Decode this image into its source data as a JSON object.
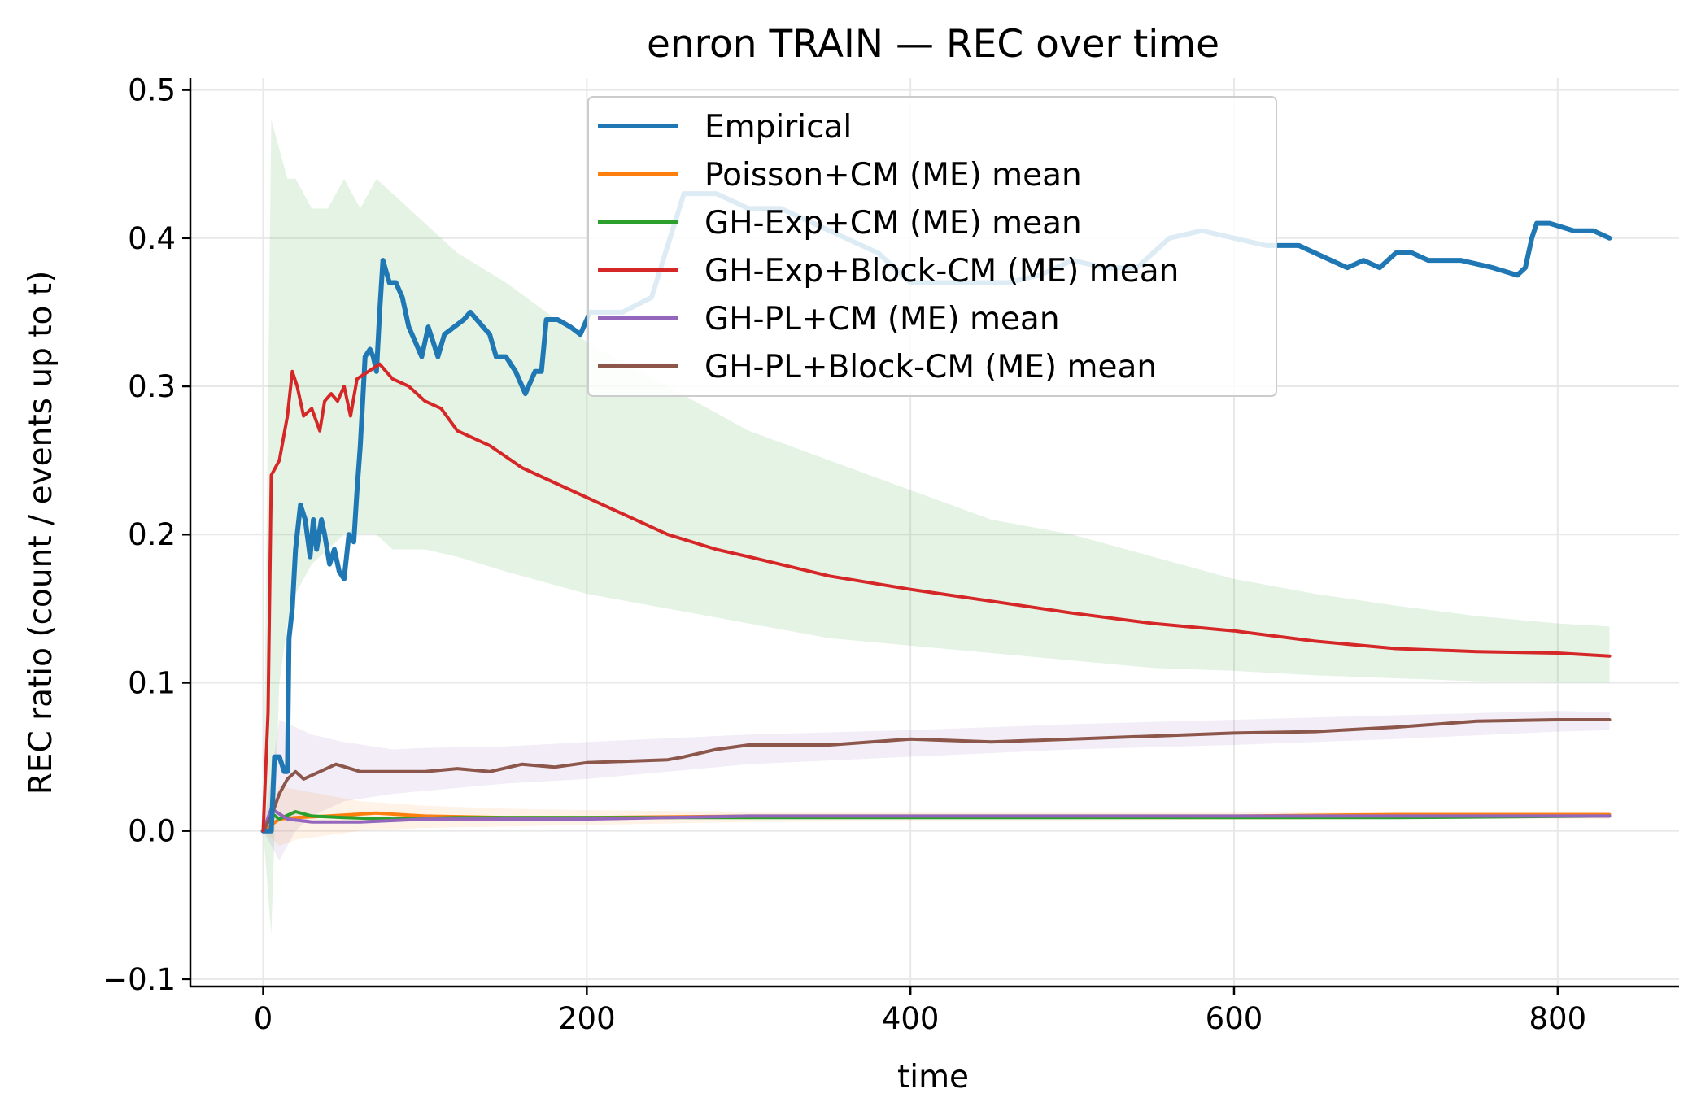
{
  "chart_data": {
    "type": "line",
    "title": "enron TRAIN — REC over time",
    "xlabel": "time",
    "ylabel": "REC ratio (count / events up to t)",
    "xlim": [
      -45,
      875
    ],
    "ylim": [
      -0.105,
      0.508
    ],
    "xticks": [
      0,
      200,
      400,
      600,
      800
    ],
    "yticks": [
      -0.1,
      0.0,
      0.1,
      0.2,
      0.3,
      0.4,
      0.5
    ],
    "ytick_labels": [
      "−0.1",
      "0.0",
      "0.1",
      "0.2",
      "0.3",
      "0.4",
      "0.5"
    ],
    "grid": true,
    "legend_position": "top-center",
    "series": [
      {
        "name": "Empirical",
        "color": "#1f77b4",
        "points": [
          [
            0,
            0
          ],
          [
            5,
            0
          ],
          [
            7,
            0.05
          ],
          [
            10,
            0.05
          ],
          [
            13,
            0.04
          ],
          [
            15,
            0.04
          ],
          [
            16,
            0.13
          ],
          [
            18,
            0.15
          ],
          [
            20,
            0.19
          ],
          [
            23,
            0.22
          ],
          [
            26,
            0.21
          ],
          [
            29,
            0.185
          ],
          [
            31,
            0.21
          ],
          [
            33,
            0.19
          ],
          [
            36,
            0.21
          ],
          [
            38,
            0.2
          ],
          [
            41,
            0.18
          ],
          [
            44,
            0.19
          ],
          [
            47,
            0.175
          ],
          [
            50,
            0.17
          ],
          [
            53,
            0.2
          ],
          [
            56,
            0.195
          ],
          [
            58,
            0.23
          ],
          [
            60,
            0.26
          ],
          [
            63,
            0.32
          ],
          [
            66,
            0.325
          ],
          [
            68,
            0.32
          ],
          [
            70,
            0.31
          ],
          [
            72,
            0.35
          ],
          [
            74,
            0.385
          ],
          [
            78,
            0.37
          ],
          [
            82,
            0.37
          ],
          [
            86,
            0.36
          ],
          [
            90,
            0.34
          ],
          [
            94,
            0.33
          ],
          [
            98,
            0.32
          ],
          [
            102,
            0.34
          ],
          [
            105,
            0.33
          ],
          [
            108,
            0.32
          ],
          [
            112,
            0.335
          ],
          [
            118,
            0.34
          ],
          [
            124,
            0.345
          ],
          [
            128,
            0.35
          ],
          [
            132,
            0.345
          ],
          [
            136,
            0.34
          ],
          [
            140,
            0.335
          ],
          [
            144,
            0.32
          ],
          [
            150,
            0.32
          ],
          [
            156,
            0.31
          ],
          [
            162,
            0.295
          ],
          [
            168,
            0.31
          ],
          [
            172,
            0.31
          ],
          [
            175,
            0.345
          ],
          [
            182,
            0.345
          ],
          [
            190,
            0.34
          ],
          [
            196,
            0.335
          ],
          [
            202,
            0.35
          ],
          [
            210,
            0.35
          ],
          [
            222,
            0.35
          ],
          [
            240,
            0.36
          ],
          [
            260,
            0.43
          ],
          [
            280,
            0.43
          ],
          [
            300,
            0.42
          ],
          [
            320,
            0.42
          ],
          [
            340,
            0.41
          ],
          [
            360,
            0.4
          ],
          [
            380,
            0.39
          ],
          [
            400,
            0.37
          ],
          [
            430,
            0.37
          ],
          [
            460,
            0.37
          ],
          [
            480,
            0.375
          ],
          [
            500,
            0.385
          ],
          [
            520,
            0.38
          ],
          [
            540,
            0.38
          ],
          [
            560,
            0.4
          ],
          [
            580,
            0.405
          ],
          [
            600,
            0.4
          ],
          [
            620,
            0.395
          ],
          [
            640,
            0.395
          ],
          [
            650,
            0.39
          ],
          [
            660,
            0.385
          ],
          [
            670,
            0.38
          ],
          [
            680,
            0.385
          ],
          [
            690,
            0.38
          ],
          [
            700,
            0.39
          ],
          [
            710,
            0.39
          ],
          [
            720,
            0.385
          ],
          [
            740,
            0.385
          ],
          [
            760,
            0.38
          ],
          [
            775,
            0.375
          ],
          [
            780,
            0.38
          ],
          [
            784,
            0.4
          ],
          [
            787,
            0.41
          ],
          [
            795,
            0.41
          ],
          [
            810,
            0.405
          ],
          [
            822,
            0.405
          ],
          [
            832,
            0.4
          ]
        ]
      },
      {
        "name": "Poisson+CM (ME) mean",
        "color": "#ff7f0e",
        "points": [
          [
            0,
            0
          ],
          [
            10,
            0.008
          ],
          [
            20,
            0.009
          ],
          [
            40,
            0.01
          ],
          [
            70,
            0.012
          ],
          [
            100,
            0.01
          ],
          [
            150,
            0.009
          ],
          [
            200,
            0.009
          ],
          [
            300,
            0.01
          ],
          [
            400,
            0.01
          ],
          [
            500,
            0.01
          ],
          [
            600,
            0.01
          ],
          [
            700,
            0.011
          ],
          [
            832,
            0.011
          ]
        ]
      },
      {
        "name": "GH-Exp+CM (ME) mean",
        "color": "#2ca02c",
        "points": [
          [
            0,
            0
          ],
          [
            5,
            0.012
          ],
          [
            10,
            0.008
          ],
          [
            20,
            0.013
          ],
          [
            30,
            0.01
          ],
          [
            50,
            0.009
          ],
          [
            80,
            0.008
          ],
          [
            120,
            0.009
          ],
          [
            200,
            0.009
          ],
          [
            300,
            0.009
          ],
          [
            400,
            0.009
          ],
          [
            500,
            0.009
          ],
          [
            600,
            0.009
          ],
          [
            700,
            0.009
          ],
          [
            832,
            0.01
          ]
        ]
      },
      {
        "name": "GH-Exp+Block-CM (ME) mean",
        "color": "#d62728",
        "points": [
          [
            0,
            0
          ],
          [
            3,
            0.08
          ],
          [
            5,
            0.24
          ],
          [
            10,
            0.25
          ],
          [
            15,
            0.28
          ],
          [
            18,
            0.31
          ],
          [
            21,
            0.3
          ],
          [
            25,
            0.28
          ],
          [
            30,
            0.285
          ],
          [
            35,
            0.27
          ],
          [
            38,
            0.29
          ],
          [
            42,
            0.295
          ],
          [
            46,
            0.29
          ],
          [
            50,
            0.3
          ],
          [
            54,
            0.28
          ],
          [
            58,
            0.305
          ],
          [
            65,
            0.31
          ],
          [
            72,
            0.315
          ],
          [
            80,
            0.305
          ],
          [
            90,
            0.3
          ],
          [
            100,
            0.29
          ],
          [
            110,
            0.285
          ],
          [
            120,
            0.27
          ],
          [
            140,
            0.26
          ],
          [
            160,
            0.245
          ],
          [
            180,
            0.235
          ],
          [
            200,
            0.225
          ],
          [
            220,
            0.215
          ],
          [
            250,
            0.2
          ],
          [
            280,
            0.19
          ],
          [
            300,
            0.185
          ],
          [
            350,
            0.172
          ],
          [
            400,
            0.163
          ],
          [
            450,
            0.155
          ],
          [
            500,
            0.147
          ],
          [
            550,
            0.14
          ],
          [
            600,
            0.135
          ],
          [
            650,
            0.128
          ],
          [
            700,
            0.123
          ],
          [
            750,
            0.121
          ],
          [
            800,
            0.12
          ],
          [
            832,
            0.118
          ]
        ]
      },
      {
        "name": "GH-PL+CM (ME) mean",
        "color": "#9467bd",
        "points": [
          [
            0,
            0
          ],
          [
            5,
            0.015
          ],
          [
            15,
            0.008
          ],
          [
            30,
            0.006
          ],
          [
            60,
            0.006
          ],
          [
            100,
            0.008
          ],
          [
            200,
            0.008
          ],
          [
            300,
            0.01
          ],
          [
            400,
            0.01
          ],
          [
            500,
            0.01
          ],
          [
            600,
            0.01
          ],
          [
            700,
            0.01
          ],
          [
            832,
            0.01
          ]
        ]
      },
      {
        "name": "GH-PL+Block-CM (ME) mean",
        "color": "#8c564b",
        "points": [
          [
            0,
            0
          ],
          [
            5,
            0.01
          ],
          [
            10,
            0.025
          ],
          [
            15,
            0.035
          ],
          [
            20,
            0.04
          ],
          [
            25,
            0.035
          ],
          [
            35,
            0.04
          ],
          [
            45,
            0.045
          ],
          [
            60,
            0.04
          ],
          [
            80,
            0.04
          ],
          [
            100,
            0.04
          ],
          [
            120,
            0.042
          ],
          [
            140,
            0.04
          ],
          [
            160,
            0.045
          ],
          [
            180,
            0.043
          ],
          [
            200,
            0.046
          ],
          [
            250,
            0.048
          ],
          [
            260,
            0.05
          ],
          [
            280,
            0.055
          ],
          [
            300,
            0.058
          ],
          [
            350,
            0.058
          ],
          [
            400,
            0.062
          ],
          [
            450,
            0.06
          ],
          [
            500,
            0.062
          ],
          [
            550,
            0.064
          ],
          [
            600,
            0.066
          ],
          [
            650,
            0.067
          ],
          [
            700,
            0.07
          ],
          [
            750,
            0.074
          ],
          [
            800,
            0.075
          ],
          [
            832,
            0.075
          ]
        ]
      }
    ],
    "bands": [
      {
        "name": "GH-Exp+Block-CM band",
        "color": "#2ca02c",
        "opacity": 0.13,
        "x": [
          0,
          5,
          10,
          15,
          20,
          30,
          40,
          50,
          60,
          70,
          80,
          100,
          120,
          150,
          200,
          250,
          300,
          350,
          400,
          450,
          500,
          550,
          600,
          650,
          700,
          750,
          800,
          832
        ],
        "upper": [
          0.0,
          0.48,
          0.46,
          0.44,
          0.44,
          0.42,
          0.42,
          0.44,
          0.42,
          0.44,
          0.43,
          0.41,
          0.39,
          0.37,
          0.33,
          0.3,
          0.27,
          0.25,
          0.23,
          0.21,
          0.2,
          0.185,
          0.17,
          0.16,
          0.152,
          0.145,
          0.14,
          0.138
        ],
        "lower": [
          0.0,
          -0.07,
          0.1,
          0.14,
          0.16,
          0.18,
          0.19,
          0.2,
          0.2,
          0.2,
          0.19,
          0.19,
          0.185,
          0.175,
          0.16,
          0.15,
          0.14,
          0.13,
          0.125,
          0.12,
          0.115,
          0.11,
          0.108,
          0.105,
          0.103,
          0.101,
          0.1,
          0.1
        ]
      },
      {
        "name": "GH-PL+Block-CM band",
        "color": "#9467bd",
        "opacity": 0.12,
        "x": [
          0,
          10,
          20,
          30,
          50,
          80,
          100,
          150,
          200,
          300,
          400,
          500,
          600,
          700,
          800,
          832
        ],
        "upper": [
          0.0,
          0.075,
          0.07,
          0.065,
          0.06,
          0.055,
          0.056,
          0.057,
          0.06,
          0.065,
          0.068,
          0.072,
          0.075,
          0.078,
          0.081,
          0.08
        ],
        "lower": [
          0.0,
          -0.02,
          0.0,
          0.01,
          0.02,
          0.025,
          0.027,
          0.032,
          0.035,
          0.045,
          0.05,
          0.055,
          0.058,
          0.062,
          0.067,
          0.068
        ]
      },
      {
        "name": "Poisson+CM band",
        "color": "#ff7f0e",
        "opacity": 0.1,
        "x": [
          0,
          10,
          20,
          40,
          60,
          100,
          150,
          200,
          300,
          500,
          700,
          832
        ],
        "upper": [
          0.0,
          0.03,
          0.028,
          0.024,
          0.02,
          0.017,
          0.015,
          0.014,
          0.013,
          0.013,
          0.013,
          0.013
        ],
        "lower": [
          0.0,
          -0.01,
          -0.006,
          -0.003,
          0.0,
          0.002,
          0.003,
          0.004,
          0.006,
          0.007,
          0.008,
          0.008
        ]
      }
    ]
  }
}
